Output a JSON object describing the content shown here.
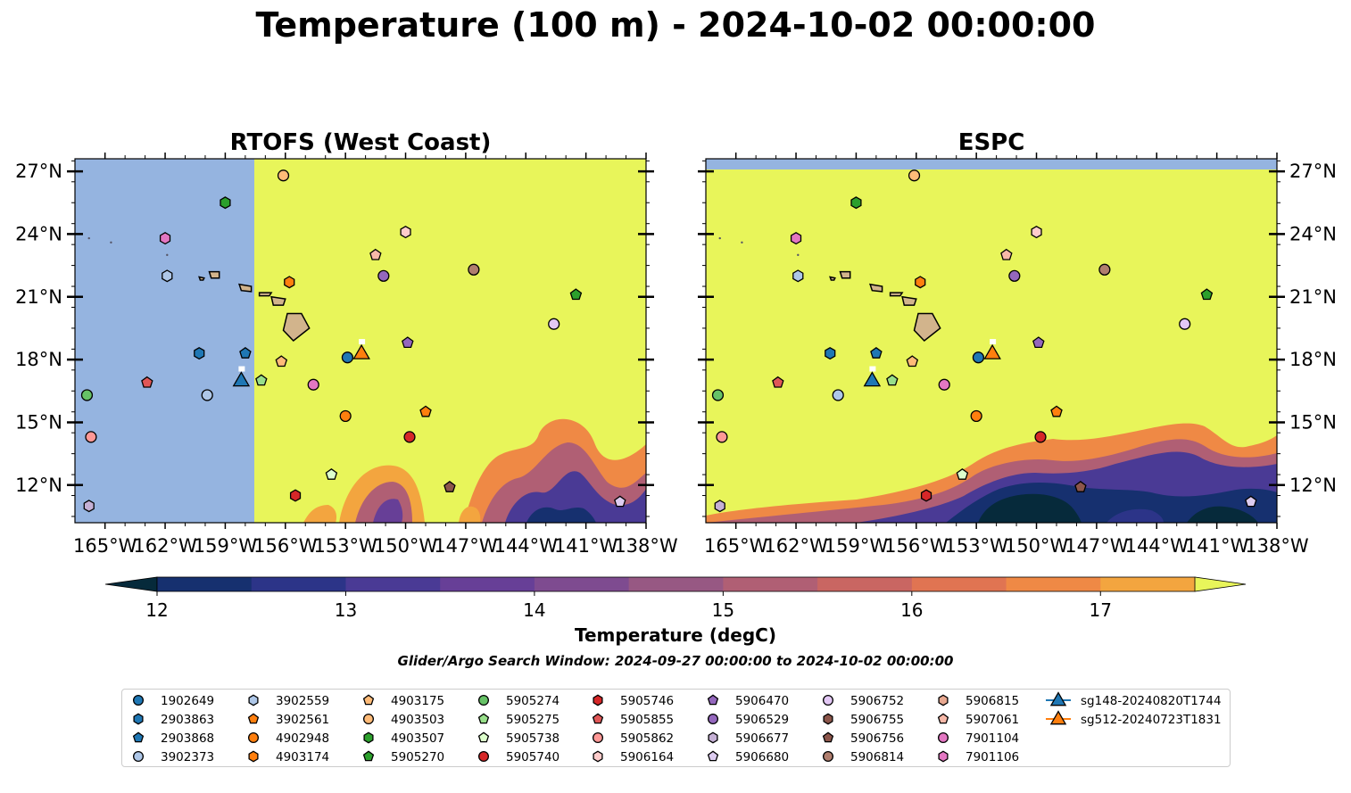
{
  "figure": {
    "title": "Temperature (100 m) - 2024-10-02 00:00:00",
    "search_window": "Glider/Argo Search Window: 2024-09-27 00:00:00 to 2024-10-02 00:00:00"
  },
  "colors": {
    "ocean_mask": "#95b4e0",
    "land": "#d2b48c",
    "warm_fill": "#e8f55a",
    "colorbar": [
      "#062a3b",
      "#16306f",
      "#2c3488",
      "#4a3a95",
      "#673f97",
      "#7e4b90",
      "#975883",
      "#b05f74",
      "#c96662",
      "#e07452",
      "#ef8945",
      "#f3a53f",
      "#f4c43f",
      "#e8f55a"
    ]
  },
  "panels": [
    {
      "title": "RTOFS (West Coast)",
      "lon_ticks": [
        "165°W",
        "162°W",
        "159°W",
        "156°W",
        "153°W",
        "150°W",
        "147°W",
        "144°W",
        "141°W",
        "138°W"
      ],
      "lat_ticks": [
        "27°N",
        "24°N",
        "21°N",
        "18°N",
        "15°N",
        "12°N"
      ],
      "lat_labels_side": "left"
    },
    {
      "title": "ESPC",
      "lon_ticks": [
        "165°W",
        "162°W",
        "159°W",
        "156°W",
        "153°W",
        "150°W",
        "147°W",
        "144°W",
        "141°W",
        "138°W"
      ],
      "lat_ticks": [
        "27°N",
        "24°N",
        "21°N",
        "18°N",
        "15°N",
        "12°N"
      ],
      "lat_labels_side": "right"
    }
  ],
  "colorbar": {
    "label": "Temperature (degC)",
    "ticks": [
      "12",
      "13",
      "14",
      "15",
      "16",
      "17"
    ],
    "vmin": 11.75,
    "vmax": 17.5,
    "step": 0.5,
    "extend": "both"
  },
  "chart_data": [
    {
      "type": "heatmap",
      "title": "RTOFS (West Coast)",
      "xlabel": "",
      "ylabel": "",
      "xlim": [
        -166.5,
        -138
      ],
      "ylim": [
        10.2,
        27.6
      ],
      "masked_west_of_lon": -157.7,
      "description_of_field": "≥17.5 degC over most of domain; cooler (12.5–16.5 degC) patches in south near 10–15°N",
      "cool_patches": [
        {
          "lon": -151.5,
          "lat": 11.5,
          "min_temp": 13.5
        },
        {
          "lon": -140.5,
          "lat": 11.5,
          "min_temp": 12.5
        },
        {
          "lon": -143.0,
          "lat": 12.5,
          "min_temp": 14.0
        }
      ]
    },
    {
      "type": "heatmap",
      "title": "ESPC",
      "xlabel": "",
      "ylabel": "",
      "xlim": [
        -166.5,
        -138
      ],
      "ylim": [
        10.2,
        27.6
      ],
      "masked_north_of_lat": 27.1,
      "cool_patches": [
        {
          "lon": -149.0,
          "lat": 11.0,
          "min_temp": 11.8
        },
        {
          "lon": -140.0,
          "lat": 11.5,
          "min_temp": 12.0
        },
        {
          "lon": -145.0,
          "lat": 13.0,
          "min_temp": 13.0
        }
      ]
    },
    {
      "type": "scatter",
      "series": [
        {
          "name": "1902649",
          "marker": "circle",
          "color": "#1f77b4",
          "points": [
            [
              -152.9,
              18.1
            ]
          ]
        },
        {
          "name": "2903863",
          "marker": "hexagon",
          "color": "#1f77b4",
          "points": [
            [
              -160.3,
              18.3
            ]
          ]
        },
        {
          "name": "2903868",
          "marker": "pentagon",
          "color": "#1f77b4",
          "points": [
            [
              -158.0,
              18.3
            ]
          ]
        },
        {
          "name": "3902373",
          "marker": "circle",
          "color": "#aec7e8",
          "points": [
            [
              -159.9,
              16.3
            ]
          ]
        },
        {
          "name": "3902559",
          "marker": "hexagon",
          "color": "#aec7e8",
          "points": [
            [
              -161.9,
              22.0
            ]
          ]
        },
        {
          "name": "3902561",
          "marker": "pentagon",
          "color": "#ff7f0e",
          "points": [
            [
              -149.0,
              15.5
            ]
          ]
        },
        {
          "name": "4902948",
          "marker": "circle",
          "color": "#ff7f0e",
          "points": [
            [
              -153.0,
              15.3
            ]
          ]
        },
        {
          "name": "4903174",
          "marker": "hexagon",
          "color": "#ff7f0e",
          "points": [
            [
              -155.8,
              21.7
            ]
          ]
        },
        {
          "name": "4903175",
          "marker": "pentagon",
          "color": "#ffbb78",
          "points": [
            [
              -156.2,
              17.9
            ]
          ]
        },
        {
          "name": "4903503",
          "marker": "circle",
          "color": "#ffbb78",
          "points": [
            [
              -156.1,
              26.8
            ]
          ]
        },
        {
          "name": "4903507",
          "marker": "hexagon",
          "color": "#2ca02c",
          "points": [
            [
              -159.0,
              25.5
            ]
          ]
        },
        {
          "name": "5905270",
          "marker": "pentagon",
          "color": "#2ca02c",
          "points": [
            [
              -141.5,
              21.1
            ]
          ]
        },
        {
          "name": "5905274",
          "marker": "circle",
          "color": "#66c266",
          "points": [
            [
              -165.9,
              16.3
            ]
          ]
        },
        {
          "name": "5905275",
          "marker": "pentagon",
          "color": "#98df8a",
          "points": [
            [
              -157.2,
              17.0
            ]
          ]
        },
        {
          "name": "5905738",
          "marker": "pentagon",
          "color": "#ddffcc",
          "points": [
            [
              -153.7,
              12.5
            ]
          ]
        },
        {
          "name": "5905740",
          "marker": "circle",
          "color": "#d62728",
          "points": [
            [
              -149.8,
              14.3
            ]
          ]
        },
        {
          "name": "5905746",
          "marker": "hexagon",
          "color": "#d62728",
          "points": [
            [
              -155.5,
              11.5
            ]
          ]
        },
        {
          "name": "5905855",
          "marker": "pentagon",
          "color": "#e05757",
          "points": [
            [
              -162.9,
              16.9
            ]
          ]
        },
        {
          "name": "5905862",
          "marker": "circle",
          "color": "#ff9896",
          "points": [
            [
              -165.7,
              14.3
            ]
          ]
        },
        {
          "name": "5906164",
          "marker": "hexagon",
          "color": "#ffcccb",
          "points": [
            [
              -150.0,
              24.1
            ]
          ]
        },
        {
          "name": "5906470",
          "marker": "pentagon",
          "color": "#9467bd",
          "points": [
            [
              -149.9,
              18.8
            ]
          ]
        },
        {
          "name": "5906529",
          "marker": "circle",
          "color": "#9467bd",
          "points": [
            [
              -151.1,
              22.0
            ]
          ]
        },
        {
          "name": "5906677",
          "marker": "hexagon",
          "color": "#c5b0d5",
          "points": [
            [
              -165.8,
              11.0
            ]
          ]
        },
        {
          "name": "5906680",
          "marker": "pentagon",
          "color": "#ddccf0",
          "points": [
            [
              -139.3,
              11.2
            ]
          ]
        },
        {
          "name": "5906752",
          "marker": "circle",
          "color": "#e3c8f5",
          "points": [
            [
              -142.6,
              19.7
            ]
          ]
        },
        {
          "name": "5906755",
          "marker": "hexagon",
          "color": "#8c564b",
          "points": []
        },
        {
          "name": "5906756",
          "marker": "pentagon",
          "color": "#8c564b",
          "points": [
            [
              -147.8,
              11.9
            ]
          ]
        },
        {
          "name": "5906814",
          "marker": "circle",
          "color": "#b07e6e",
          "points": [
            [
              -146.6,
              22.3
            ]
          ]
        },
        {
          "name": "5906815",
          "marker": "hexagon",
          "color": "#e8a890",
          "points": []
        },
        {
          "name": "5907061",
          "marker": "pentagon",
          "color": "#f7b8a8",
          "points": [
            [
              -151.5,
              23.0
            ]
          ]
        },
        {
          "name": "7901104",
          "marker": "circle",
          "color": "#e377c2",
          "points": [
            [
              -154.6,
              16.8
            ]
          ]
        },
        {
          "name": "7901106",
          "marker": "hexagon",
          "color": "#e377c2",
          "points": [
            [
              -162.0,
              23.8
            ]
          ]
        },
        {
          "name": "sg148-20240820T1744",
          "marker": "triangle",
          "color": "#1f77b4",
          "points": [
            [
              -158.2,
              17.0
            ]
          ]
        },
        {
          "name": "sg512-20240723T1831",
          "marker": "triangle",
          "color": "#ff7f0e",
          "points": [
            [
              -152.2,
              18.3
            ]
          ]
        }
      ]
    }
  ]
}
